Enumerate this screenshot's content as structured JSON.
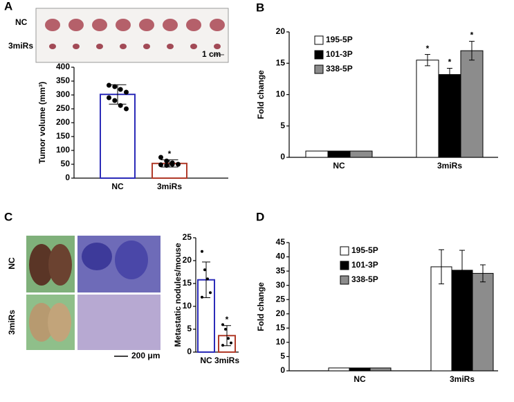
{
  "figure": {
    "panel_labels": [
      "A",
      "B",
      "C",
      "D"
    ],
    "photo_a": {
      "rows": [
        "NC",
        "3miRs"
      ],
      "scale": "1 cm"
    },
    "photo_c": {
      "rows": [
        "NC",
        "3miRs"
      ],
      "scale": "200 μm"
    }
  },
  "chart_data": [
    {
      "type": "bar",
      "y_label": "Tumor volume (mm³)",
      "categories": [
        "NC",
        "3miRs"
      ],
      "values": [
        302,
        53
      ],
      "errors": [
        35,
        13
      ],
      "colors": [
        "#2b2bb8",
        "#b03a28"
      ],
      "points": [
        [
          335,
          330,
          320,
          310,
          290,
          280,
          262,
          250
        ],
        [
          75,
          62,
          55,
          50,
          48,
          46,
          50
        ]
      ],
      "markers": [
        null,
        "*"
      ],
      "ylim": [
        0,
        400
      ],
      "yticks": [
        0,
        50,
        100,
        150,
        200,
        250,
        300,
        350,
        400
      ]
    },
    {
      "type": "bar",
      "y_label": "Fold change",
      "categories": [
        "NC",
        "3miRs"
      ],
      "series": [
        {
          "name": "195-5P",
          "color": "#ffffff",
          "values": [
            1,
            15.5
          ],
          "errors": [
            0,
            0.9
          ],
          "markers": [
            null,
            "*"
          ]
        },
        {
          "name": "101-3P",
          "color": "#000000",
          "values": [
            1,
            13.2
          ],
          "errors": [
            0,
            1.0
          ],
          "markers": [
            null,
            "*"
          ]
        },
        {
          "name": "338-5P",
          "color": "#8c8c8c",
          "values": [
            1,
            17.0
          ],
          "errors": [
            0,
            1.5
          ],
          "markers": [
            null,
            "*"
          ]
        }
      ],
      "ylim": [
        0,
        20
      ],
      "yticks": [
        0,
        5,
        10,
        15,
        20
      ]
    },
    {
      "type": "bar",
      "y_label": "Metastatic nodules/mouse",
      "categories": [
        "NC",
        "3miRs"
      ],
      "values": [
        15.8,
        3.6
      ],
      "errors": [
        3.9,
        2.2
      ],
      "colors": [
        "#2b2bb8",
        "#b03a28"
      ],
      "points": [
        [
          22,
          18,
          16,
          13,
          12
        ],
        [
          6,
          5,
          3,
          2,
          1.5
        ]
      ],
      "markers": [
        null,
        "*"
      ],
      "ylim": [
        0,
        25
      ],
      "yticks": [
        0,
        5,
        10,
        15,
        20,
        25
      ]
    },
    {
      "type": "bar",
      "y_label": "Fold change",
      "categories": [
        "NC",
        "3miRs"
      ],
      "series": [
        {
          "name": "195-5P",
          "color": "#ffffff",
          "values": [
            1,
            36.5
          ],
          "errors": [
            0,
            6.0
          ]
        },
        {
          "name": "101-3P",
          "color": "#000000",
          "values": [
            1,
            35.3
          ],
          "errors": [
            0,
            7.0
          ]
        },
        {
          "name": "338-5P",
          "color": "#8c8c8c",
          "values": [
            1,
            34.2
          ],
          "errors": [
            0,
            3.0
          ]
        }
      ],
      "ylim": [
        0,
        45
      ],
      "yticks": [
        0,
        5,
        10,
        15,
        20,
        25,
        30,
        35,
        40,
        45
      ]
    }
  ]
}
